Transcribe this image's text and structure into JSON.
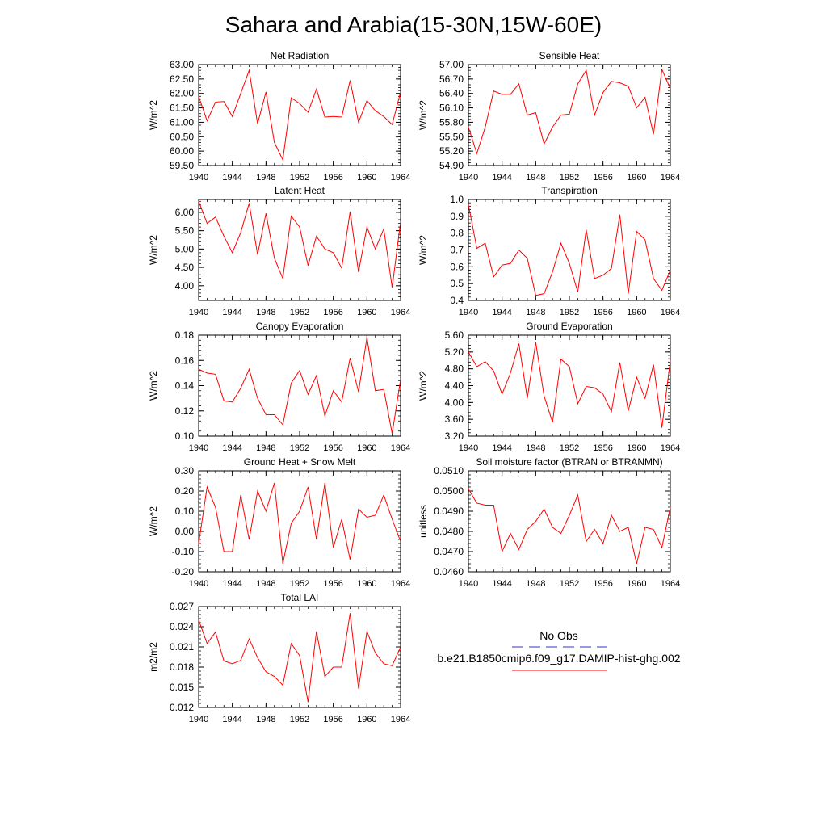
{
  "figure": {
    "title": "Sahara and Arabia(15-30N,15W-60E)",
    "legend": {
      "obs_label": "No Obs",
      "model_label": "b.e21.B1850cmip6.f09_g17.DAMIP-hist-ghg.002",
      "obs_color": "#3333cc",
      "model_color": "#ff0000"
    }
  },
  "chart_data": [
    {
      "type": "line",
      "title": "Net Radiation",
      "ylabel": "W/m^2",
      "x": [
        1940,
        1941,
        1942,
        1943,
        1944,
        1945,
        1946,
        1947,
        1948,
        1949,
        1950,
        1951,
        1952,
        1953,
        1954,
        1955,
        1956,
        1957,
        1958,
        1959,
        1960,
        1961,
        1962,
        1963,
        1964
      ],
      "xlim": [
        1940,
        1964
      ],
      "xticks": [
        "1940",
        "1944",
        "1948",
        "1952",
        "1956",
        "1960",
        "1964"
      ],
      "ylim": [
        59.5,
        63.0
      ],
      "yticks": [
        "59.50",
        "60.00",
        "60.50",
        "61.00",
        "61.50",
        "62.00",
        "62.50",
        "63.00"
      ],
      "series": [
        {
          "color": "#ff0000",
          "values": [
            61.9,
            61.05,
            61.7,
            61.72,
            61.2,
            62.0,
            62.8,
            60.95,
            62.05,
            60.3,
            59.7,
            61.85,
            61.65,
            61.35,
            62.15,
            61.18,
            61.2,
            61.18,
            62.45,
            61.0,
            61.75,
            61.4,
            61.2,
            60.92,
            62.05
          ]
        }
      ]
    },
    {
      "type": "line",
      "title": "Sensible Heat",
      "ylabel": "W/m^2",
      "x": [
        1940,
        1941,
        1942,
        1943,
        1944,
        1945,
        1946,
        1947,
        1948,
        1949,
        1950,
        1951,
        1952,
        1953,
        1954,
        1955,
        1956,
        1957,
        1958,
        1959,
        1960,
        1961,
        1962,
        1963,
        1964
      ],
      "xlim": [
        1940,
        1964
      ],
      "xticks": [
        "1940",
        "1944",
        "1948",
        "1952",
        "1956",
        "1960",
        "1964"
      ],
      "ylim": [
        54.9,
        57.0
      ],
      "yticks": [
        "54.90",
        "55.20",
        "55.50",
        "55.80",
        "56.10",
        "56.40",
        "56.70",
        "57.00"
      ],
      "series": [
        {
          "color": "#ff0000",
          "values": [
            55.7,
            55.15,
            55.7,
            56.45,
            56.38,
            56.38,
            56.6,
            55.95,
            56.0,
            55.35,
            55.7,
            55.95,
            55.97,
            56.6,
            56.88,
            55.95,
            56.42,
            56.65,
            56.62,
            56.55,
            56.1,
            56.32,
            55.55,
            56.9,
            56.5
          ]
        }
      ]
    },
    {
      "type": "line",
      "title": "Latent Heat",
      "ylabel": "W/m^2",
      "x": [
        1940,
        1941,
        1942,
        1943,
        1944,
        1945,
        1946,
        1947,
        1948,
        1949,
        1950,
        1951,
        1952,
        1953,
        1954,
        1955,
        1956,
        1957,
        1958,
        1959,
        1960,
        1961,
        1962,
        1963,
        1964
      ],
      "xlim": [
        1940,
        1964
      ],
      "xticks": [
        "1940",
        "1944",
        "1948",
        "1952",
        "1956",
        "1960",
        "1964"
      ],
      "ylim": [
        3.6,
        6.35
      ],
      "yticks": [
        "4.00",
        "4.50",
        "5.00",
        "5.50",
        "6.00"
      ],
      "series": [
        {
          "color": "#ff0000",
          "values": [
            6.3,
            5.7,
            5.87,
            5.35,
            4.9,
            5.45,
            6.25,
            4.85,
            5.97,
            4.75,
            4.2,
            5.9,
            5.6,
            4.55,
            5.35,
            5.0,
            4.9,
            4.48,
            6.02,
            4.37,
            5.6,
            5.0,
            5.55,
            3.95,
            5.75
          ]
        }
      ]
    },
    {
      "type": "line",
      "title": "Transpiration",
      "ylabel": "W/m^2",
      "x": [
        1940,
        1941,
        1942,
        1943,
        1944,
        1945,
        1946,
        1947,
        1948,
        1949,
        1950,
        1951,
        1952,
        1953,
        1954,
        1955,
        1956,
        1957,
        1958,
        1959,
        1960,
        1961,
        1962,
        1963,
        1964
      ],
      "xlim": [
        1940,
        1964
      ],
      "xticks": [
        "1940",
        "1944",
        "1948",
        "1952",
        "1956",
        "1960",
        "1964"
      ],
      "ylim": [
        0.4,
        1.0
      ],
      "yticks": [
        "0.4",
        "0.5",
        "0.6",
        "0.7",
        "0.8",
        "0.9",
        "1.0"
      ],
      "series": [
        {
          "color": "#ff0000",
          "values": [
            0.97,
            0.71,
            0.74,
            0.54,
            0.61,
            0.62,
            0.7,
            0.65,
            0.43,
            0.44,
            0.57,
            0.74,
            0.62,
            0.45,
            0.82,
            0.53,
            0.55,
            0.59,
            0.91,
            0.44,
            0.81,
            0.76,
            0.53,
            0.46,
            0.58
          ]
        }
      ]
    },
    {
      "type": "line",
      "title": "Canopy Evaporation",
      "ylabel": "W/m^2",
      "x": [
        1940,
        1941,
        1942,
        1943,
        1944,
        1945,
        1946,
        1947,
        1948,
        1949,
        1950,
        1951,
        1952,
        1953,
        1954,
        1955,
        1956,
        1957,
        1958,
        1959,
        1960,
        1961,
        1962,
        1963,
        1964
      ],
      "xlim": [
        1940,
        1964
      ],
      "xticks": [
        "1940",
        "1944",
        "1948",
        "1952",
        "1956",
        "1960",
        "1964"
      ],
      "ylim": [
        0.1,
        0.18
      ],
      "yticks": [
        "0.10",
        "0.12",
        "0.14",
        "0.16",
        "0.18"
      ],
      "series": [
        {
          "color": "#ff0000",
          "values": [
            0.153,
            0.15,
            0.149,
            0.128,
            0.127,
            0.138,
            0.153,
            0.13,
            0.117,
            0.117,
            0.109,
            0.142,
            0.152,
            0.133,
            0.148,
            0.116,
            0.136,
            0.127,
            0.162,
            0.135,
            0.178,
            0.136,
            0.137,
            0.102,
            0.145
          ]
        }
      ]
    },
    {
      "type": "line",
      "title": "Ground Evaporation",
      "ylabel": "W/m^2",
      "x": [
        1940,
        1941,
        1942,
        1943,
        1944,
        1945,
        1946,
        1947,
        1948,
        1949,
        1950,
        1951,
        1952,
        1953,
        1954,
        1955,
        1956,
        1957,
        1958,
        1959,
        1960,
        1961,
        1962,
        1963,
        1964
      ],
      "xlim": [
        1940,
        1964
      ],
      "xticks": [
        "1940",
        "1944",
        "1948",
        "1952",
        "1956",
        "1960",
        "1964"
      ],
      "ylim": [
        3.2,
        5.6
      ],
      "yticks": [
        "3.20",
        "3.60",
        "4.00",
        "4.40",
        "4.80",
        "5.20",
        "5.60"
      ],
      "series": [
        {
          "color": "#ff0000",
          "values": [
            5.2,
            4.85,
            4.97,
            4.75,
            4.2,
            4.7,
            5.4,
            4.1,
            5.43,
            4.15,
            3.53,
            5.03,
            4.85,
            3.97,
            4.38,
            4.35,
            4.2,
            3.78,
            4.95,
            3.8,
            4.6,
            4.1,
            4.9,
            3.4,
            5.0
          ]
        }
      ]
    },
    {
      "type": "line",
      "title": "Ground Heat + Snow Melt",
      "ylabel": "W/m^2",
      "x": [
        1940,
        1941,
        1942,
        1943,
        1944,
        1945,
        1946,
        1947,
        1948,
        1949,
        1950,
        1951,
        1952,
        1953,
        1954,
        1955,
        1956,
        1957,
        1958,
        1959,
        1960,
        1961,
        1962,
        1963,
        1964
      ],
      "xlim": [
        1940,
        1964
      ],
      "xticks": [
        "1940",
        "1944",
        "1948",
        "1952",
        "1956",
        "1960",
        "1964"
      ],
      "ylim": [
        -0.2,
        0.3
      ],
      "yticks": [
        "-0.20",
        "-0.10",
        "0.00",
        "0.10",
        "0.20",
        "0.30"
      ],
      "series": [
        {
          "color": "#ff0000",
          "values": [
            -0.06,
            0.22,
            0.12,
            -0.1,
            -0.1,
            0.18,
            -0.04,
            0.2,
            0.1,
            0.24,
            -0.16,
            0.04,
            0.1,
            0.22,
            -0.04,
            0.24,
            -0.08,
            0.06,
            -0.14,
            0.11,
            0.07,
            0.08,
            0.18,
            0.06,
            -0.05
          ]
        }
      ]
    },
    {
      "type": "line",
      "title": "Soil moisture factor (BTRAN or BTRANMN)",
      "ylabel": "unitless",
      "x": [
        1940,
        1941,
        1942,
        1943,
        1944,
        1945,
        1946,
        1947,
        1948,
        1949,
        1950,
        1951,
        1952,
        1953,
        1954,
        1955,
        1956,
        1957,
        1958,
        1959,
        1960,
        1961,
        1962,
        1963,
        1964
      ],
      "xlim": [
        1940,
        1964
      ],
      "xticks": [
        "1940",
        "1944",
        "1948",
        "1952",
        "1956",
        "1960",
        "1964"
      ],
      "ylim": [
        0.046,
        0.051
      ],
      "yticks": [
        "0.0460",
        "0.0470",
        "0.0480",
        "0.0490",
        "0.0500",
        "0.0510"
      ],
      "series": [
        {
          "color": "#ff0000",
          "values": [
            0.0501,
            0.0494,
            0.0493,
            0.0493,
            0.047,
            0.0479,
            0.0471,
            0.0481,
            0.0485,
            0.0491,
            0.0482,
            0.0479,
            0.0488,
            0.0498,
            0.0475,
            0.0481,
            0.0474,
            0.0488,
            0.048,
            0.0482,
            0.0464,
            0.0482,
            0.0481,
            0.0472,
            0.0492
          ]
        }
      ]
    },
    {
      "type": "line",
      "title": "Total LAI",
      "ylabel": "m2/m2",
      "x": [
        1940,
        1941,
        1942,
        1943,
        1944,
        1945,
        1946,
        1947,
        1948,
        1949,
        1950,
        1951,
        1952,
        1953,
        1954,
        1955,
        1956,
        1957,
        1958,
        1959,
        1960,
        1961,
        1962,
        1963,
        1964
      ],
      "xlim": [
        1940,
        1964
      ],
      "xticks": [
        "1940",
        "1944",
        "1948",
        "1952",
        "1956",
        "1960",
        "1964"
      ],
      "ylim": [
        0.012,
        0.027
      ],
      "yticks": [
        "0.012",
        "0.015",
        "0.018",
        "0.021",
        "0.024",
        "0.027"
      ],
      "series": [
        {
          "color": "#ff0000",
          "values": [
            0.025,
            0.0215,
            0.0232,
            0.0189,
            0.0185,
            0.019,
            0.0222,
            0.0194,
            0.0173,
            0.0166,
            0.0153,
            0.0215,
            0.0197,
            0.0128,
            0.0233,
            0.0166,
            0.018,
            0.018,
            0.026,
            0.0148,
            0.0233,
            0.0201,
            0.0185,
            0.0182,
            0.021
          ]
        }
      ]
    }
  ]
}
